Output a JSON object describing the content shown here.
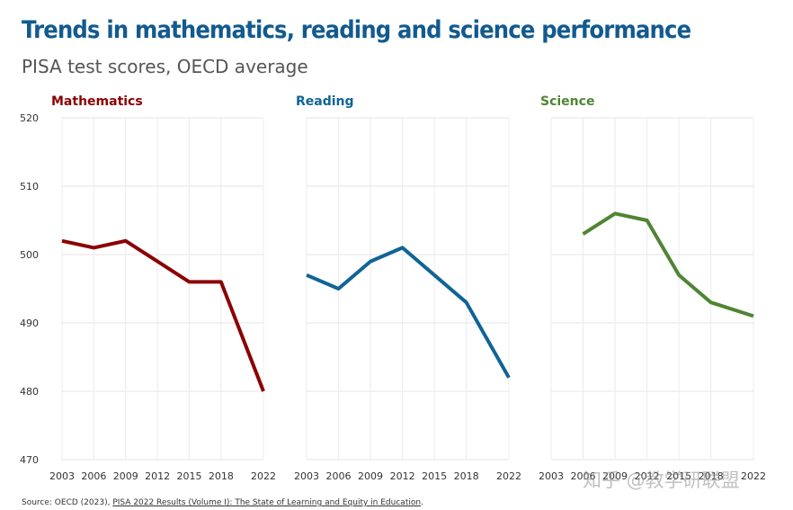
{
  "header": {
    "title": "Trends in mathematics, reading and science performance",
    "subtitle": "PISA test scores, OECD average"
  },
  "source": {
    "prefix": "Source: OECD (2023), ",
    "link_text": "PISA 2022 Results (Volume I): The State of Learning and Equity in Education",
    "suffix": "."
  },
  "watermark": "知乎 @教学研联盟",
  "chart_data": [
    {
      "type": "line",
      "title": "Mathematics",
      "color": "#8b0000",
      "categories": [
        "2003",
        "2006",
        "2009",
        "2012",
        "2015",
        "2018",
        "2022"
      ],
      "x": [
        2003,
        2006,
        2009,
        2012,
        2015,
        2018,
        2022
      ],
      "y": [
        502,
        501,
        502,
        499,
        496,
        496,
        480
      ],
      "ylim": [
        470,
        520
      ],
      "yticks": [
        470,
        480,
        490,
        500,
        510,
        520
      ],
      "grid": true
    },
    {
      "type": "line",
      "title": "Reading",
      "color": "#0f6496",
      "categories": [
        "2003",
        "2006",
        "2009",
        "2012",
        "2015",
        "2018",
        "2022"
      ],
      "x": [
        2003,
        2006,
        2009,
        2012,
        2015,
        2018,
        2022
      ],
      "y": [
        497,
        495,
        499,
        501,
        497,
        493,
        482
      ],
      "ylim": [
        470,
        520
      ],
      "grid": true
    },
    {
      "type": "line",
      "title": "Science",
      "color": "#4f8533",
      "categories": [
        "2003",
        "2006",
        "2009",
        "2012",
        "2015",
        "2018",
        "2022"
      ],
      "x": [
        2006,
        2009,
        2012,
        2015,
        2018,
        2022
      ],
      "y": [
        503,
        506,
        505,
        497,
        493,
        491
      ],
      "ylim": [
        470,
        520
      ],
      "grid": true
    }
  ]
}
